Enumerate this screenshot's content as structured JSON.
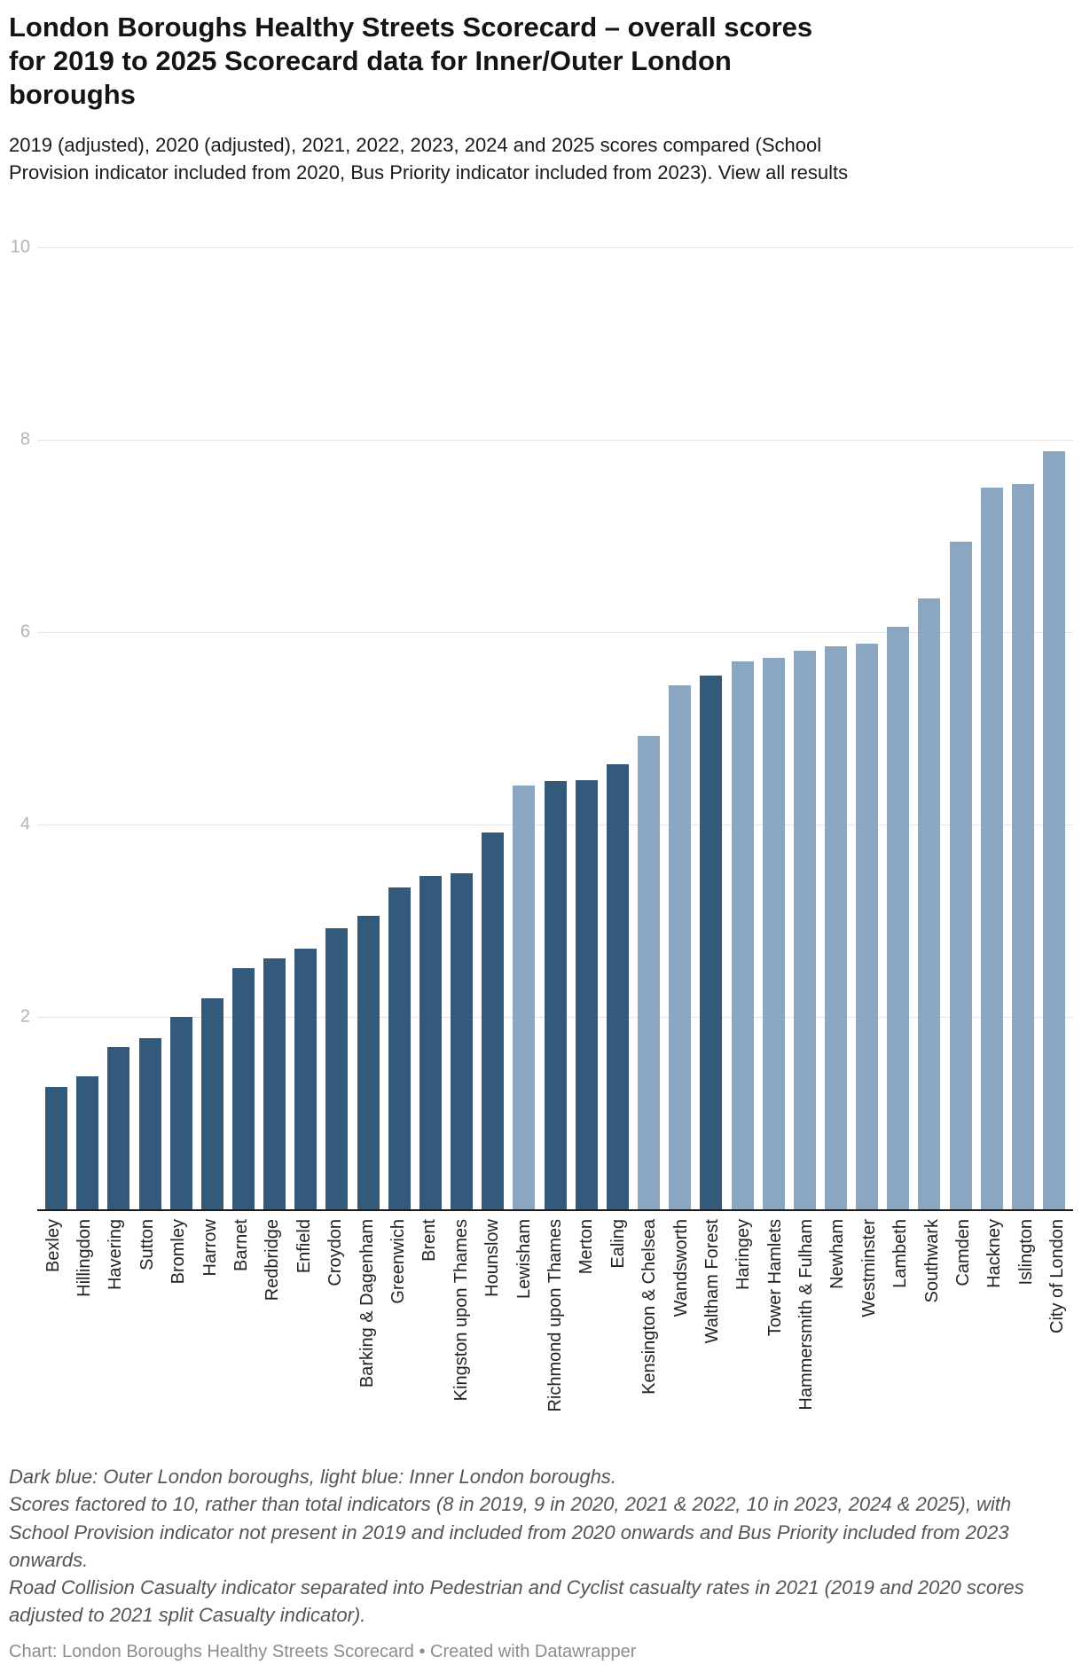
{
  "header": {
    "title": "London Boroughs Healthy Streets Scorecard – overall scores for 2019 to 2025 Scorecard data for Inner/Outer London boroughs",
    "subtitle": "2019 (adjusted), 2020 (adjusted), 2021, 2022, 2023, 2024 and 2025 scores compared (School Provision indicator included from 2020, Bus Priority indicator included from 2023).",
    "view_all_label": "View all results"
  },
  "chart_data": {
    "type": "bar",
    "title": "London Boroughs Healthy Streets Scorecard – overall scores for 2019 to 2025 Scorecard data for Inner/Outer London boroughs",
    "ylabel": "",
    "xlabel": "",
    "ylim": [
      0,
      10
    ],
    "y_ticks": [
      2,
      4,
      6,
      8,
      10
    ],
    "grid": "horizontal",
    "legend_position": "none",
    "categories": [
      "Bexley",
      "Hillingdon",
      "Havering",
      "Sutton",
      "Bromley",
      "Harrow",
      "Barnet",
      "Redbridge",
      "Enfield",
      "Croydon",
      "Barking & Dagenham",
      "Greenwich",
      "Brent",
      "Kingston upon Thames",
      "Hounslow",
      "Lewisham",
      "Richmond upon Thames",
      "Merton",
      "Ealing",
      "Kensington & Chelsea",
      "Wandsworth",
      "Waltham Forest",
      "Haringey",
      "Tower Hamlets",
      "Hammersmith & Fulham",
      "Newham",
      "Westminster",
      "Lambeth",
      "Southwark",
      "Camden",
      "Hackney",
      "Islington",
      "City of London"
    ],
    "values": [
      1.27,
      1.38,
      1.69,
      1.78,
      2.0,
      2.19,
      2.51,
      2.61,
      2.71,
      2.92,
      3.05,
      3.35,
      3.47,
      3.49,
      3.92,
      4.41,
      4.45,
      4.46,
      4.63,
      4.92,
      5.45,
      5.55,
      5.7,
      5.73,
      5.81,
      5.85,
      5.88,
      6.06,
      6.35,
      6.94,
      7.5,
      7.54,
      7.88
    ],
    "groups": [
      "outer",
      "outer",
      "outer",
      "outer",
      "outer",
      "outer",
      "outer",
      "outer",
      "outer",
      "outer",
      "outer",
      "outer",
      "outer",
      "outer",
      "outer",
      "inner",
      "outer",
      "outer",
      "outer",
      "inner",
      "inner",
      "outer",
      "inner",
      "inner",
      "inner",
      "inner",
      "inner",
      "inner",
      "inner",
      "inner",
      "inner",
      "inner",
      "inner"
    ],
    "colors": {
      "outer": "#33597b",
      "inner": "#8ba6c0"
    },
    "group_meaning": {
      "outer": "Dark blue: Outer London boroughs",
      "inner": "Light blue: Inner London boroughs"
    }
  },
  "footer": {
    "notes": [
      "Dark blue: Outer London boroughs, light blue: Inner London boroughs.",
      "Scores factored to 10, rather than total indicators (8 in 2019, 9 in 2020, 2021 & 2022, 10 in 2023, 2024 & 2025), with School Provision indicator not present in 2019 and included from 2020 onwards and Bus Priority included from 2023 onwards.",
      "Road Collision Casualty indicator separated into Pedestrian and Cyclist casualty rates in 2021 (2019 and 2020 scores adjusted to 2021 split Casualty indicator)."
    ],
    "credit": "Chart: London Boroughs Healthy Streets Scorecard • Created with Datawrapper"
  }
}
